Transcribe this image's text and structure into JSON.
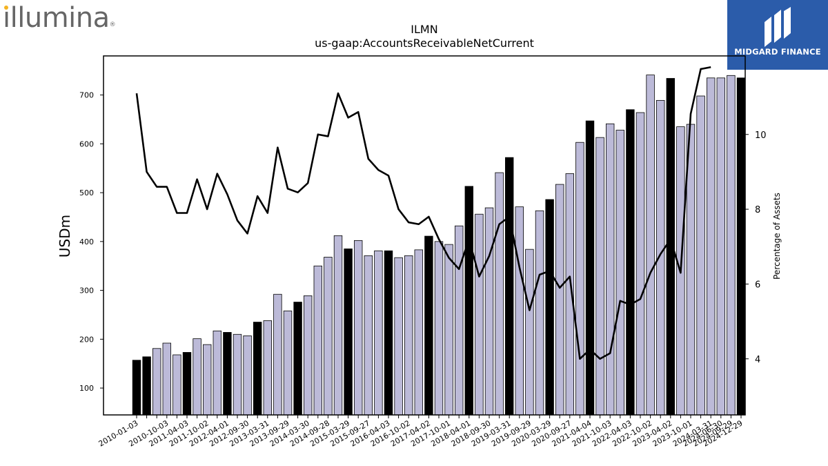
{
  "branding": {
    "company_logo_text": "illumina",
    "company_logo_mark": "®",
    "publisher_name": "MIDGARD FINANCE",
    "publisher_color": "#2b5caa",
    "logo_dot_color": "#f4b322"
  },
  "chart_data": {
    "type": "bar",
    "title": "ILMN",
    "subtitle": "us-gaap:AccountsReceivableNetCurrent",
    "ylabel": "USDm",
    "y2label": "Percentage of Assets",
    "ylim": [
      45,
      780
    ],
    "y2lim": [
      2.5,
      12.1
    ],
    "yticks": [
      100,
      200,
      300,
      400,
      500,
      600,
      700
    ],
    "y2ticks": [
      4,
      6,
      8,
      10
    ],
    "bar_color": "#bcbad8",
    "bar_highlight_color": "#000000",
    "line_color": "#000000",
    "categories": [
      "2010-01-03",
      "2010-04-04",
      "2010-07-04",
      "2010-10-03",
      "2011-01-02",
      "2011-04-03",
      "2011-07-03",
      "2011-10-02",
      "2012-01-01",
      "2012-04-01",
      "2012-07-01",
      "2012-09-30",
      "2012-12-30",
      "2013-03-31",
      "2013-06-30",
      "2013-09-29",
      "2013-12-29",
      "2014-03-30",
      "2014-06-29",
      "2014-09-28",
      "2014-12-28",
      "2015-03-29",
      "2015-06-28",
      "2015-09-27",
      "2016-01-03",
      "2016-04-03",
      "2016-07-03",
      "2016-10-02",
      "2017-01-01",
      "2017-04-02",
      "2017-07-02",
      "2017-10-01",
      "2017-12-31",
      "2018-04-01",
      "2018-07-01",
      "2018-09-30",
      "2018-12-30",
      "2019-03-31",
      "2019-06-30",
      "2019-09-29",
      "2019-12-29",
      "2020-03-29",
      "2020-06-28",
      "2020-09-27",
      "2021-01-03",
      "2021-04-04",
      "2021-07-04",
      "2021-10-03",
      "2022-01-02",
      "2022-04-03",
      "2022-07-03",
      "2022-10-02",
      "2023-01-01",
      "2023-04-02",
      "2023-07-02",
      "2023-10-01",
      "2023-12-31",
      "2024-03-31",
      "2024-06-30",
      "2024-09-29",
      "2024-12-29"
    ],
    "tick_labels_shown": [
      "2010-01-03",
      "2010-10-03",
      "2011-04-03",
      "2011-10-02",
      "2012-04-01",
      "2012-09-30",
      "2013-03-31",
      "2013-09-29",
      "2014-03-30",
      "2014-09-28",
      "2015-03-29",
      "2015-09-27",
      "2016-04-03",
      "2016-10-02",
      "2017-04-02",
      "2017-10-01",
      "2018-04-01",
      "2018-09-30",
      "2019-03-31",
      "2019-09-29",
      "2020-03-29",
      "2020-09-27",
      "2021-04-04",
      "2021-10-03",
      "2022-04-03",
      "2022-10-02",
      "2023-04-02",
      "2023-10-01",
      "2024-03-31",
      "2024-06-30",
      "2024-09-29",
      "2024-12-29"
    ],
    "highlight": [
      true,
      true,
      false,
      false,
      false,
      true,
      false,
      false,
      false,
      true,
      false,
      false,
      true,
      false,
      false,
      false,
      true,
      false,
      false,
      false,
      false,
      true,
      false,
      false,
      false,
      true,
      false,
      false,
      false,
      true,
      false,
      false,
      false,
      true,
      false,
      false,
      false,
      true,
      false,
      false,
      false,
      true,
      false,
      false,
      false,
      true,
      false,
      false,
      false,
      true,
      false,
      false,
      false,
      true,
      false,
      false,
      false,
      false,
      false,
      false,
      true
    ],
    "series": [
      {
        "name": "USDm",
        "values": [
          157,
          164,
          181,
          192,
          168,
          173,
          201,
          189,
          217,
          214,
          210,
          207,
          235,
          238,
          292,
          258,
          276,
          289,
          350,
          368,
          412,
          385,
          402,
          371,
          381,
          381,
          367,
          371,
          383,
          411,
          400,
          394,
          432,
          513,
          456,
          469,
          541,
          572,
          471,
          384,
          463,
          486,
          517,
          539,
          603,
          647,
          613,
          641,
          628,
          670,
          664,
          741,
          689,
          734,
          635,
          640,
          698,
          735,
          735,
          740,
          735
        ]
      },
      {
        "name": "Percentage of Assets",
        "axis": "right",
        "values": [
          11.1,
          9.0,
          8.6,
          8.6,
          7.9,
          7.9,
          8.8,
          8.0,
          8.95,
          8.4,
          7.7,
          7.35,
          8.35,
          7.9,
          9.65,
          8.55,
          8.45,
          8.7,
          10.0,
          9.95,
          11.1,
          10.45,
          10.6,
          9.35,
          9.05,
          8.9,
          8.0,
          7.65,
          7.6,
          7.8,
          7.2,
          6.7,
          6.4,
          7.2,
          6.2,
          6.75,
          7.6,
          7.8,
          6.45,
          5.3,
          6.25,
          6.35,
          5.9,
          6.2,
          4.0,
          4.25,
          4.0,
          4.15,
          5.55,
          5.45,
          5.6,
          6.3,
          6.8,
          7.2,
          6.3,
          10.55,
          11.75,
          11.8,
          null,
          null,
          null
        ]
      }
    ]
  }
}
